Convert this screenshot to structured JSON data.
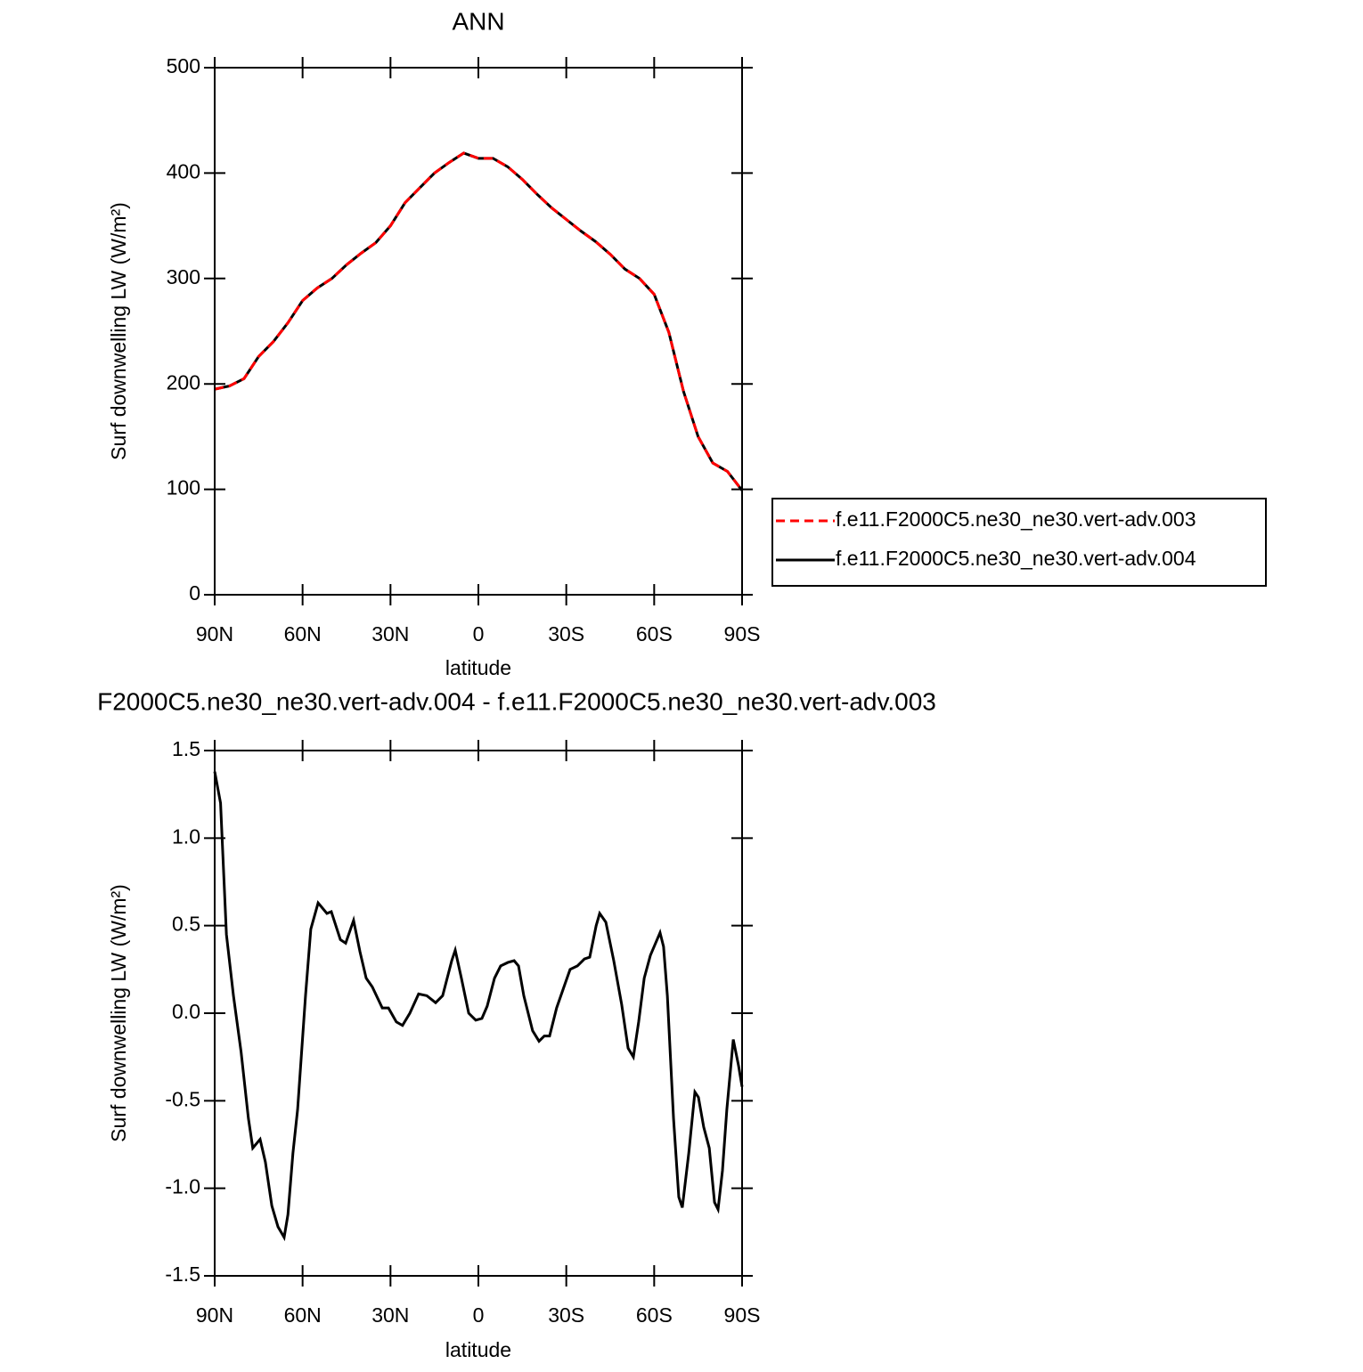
{
  "chart_data": [
    {
      "type": "line",
      "title": "ANN",
      "xlabel": "latitude",
      "ylabel": "Surf downwelling LW (W/m²)",
      "x": [
        90,
        85,
        80,
        75,
        70,
        65,
        60,
        55,
        50,
        45,
        40,
        35,
        30,
        25,
        20,
        15,
        10,
        5,
        0,
        -5,
        -10,
        -15,
        -20,
        -25,
        -30,
        -35,
        -40,
        -45,
        -50,
        -55,
        -60,
        -65,
        -70,
        -75,
        -80,
        -85,
        -90
      ],
      "series": [
        {
          "name": "f.e11.F2000C5.ne30_ne30.vert-adv.003",
          "color": "#ff0000",
          "linestyle": "dashed",
          "values": [
            195,
            198,
            205,
            226,
            240,
            258,
            279,
            291,
            300,
            313,
            324,
            334,
            350,
            372,
            386,
            400,
            410,
            419,
            414,
            414,
            406,
            394,
            380,
            367,
            356,
            345,
            335,
            323,
            309,
            300,
            285,
            249,
            193,
            150,
            125,
            117,
            99
          ]
        },
        {
          "name": "f.e11.F2000C5.ne30_ne30.vert-adv.004",
          "color": "#000000",
          "linestyle": "solid",
          "values": [
            195,
            198,
            205,
            226,
            240,
            258,
            279,
            291,
            300,
            313,
            324,
            334,
            350,
            372,
            386,
            400,
            410,
            419,
            414,
            414,
            406,
            394,
            380,
            367,
            356,
            345,
            335,
            323,
            309,
            300,
            285,
            249,
            193,
            150,
            125,
            117,
            99
          ]
        }
      ],
      "xlim": [
        90,
        -90
      ],
      "xticks": [
        {
          "value": 90,
          "label": "90N"
        },
        {
          "value": 60,
          "label": "60N"
        },
        {
          "value": 30,
          "label": "30N"
        },
        0,
        {
          "value": -30,
          "label": "30S"
        },
        {
          "value": -60,
          "label": "60S"
        },
        {
          "value": -90,
          "label": "90S"
        }
      ],
      "ylim": [
        0,
        500
      ],
      "yticks": [
        0,
        100,
        200,
        300,
        400,
        500
      ],
      "legend": "right"
    },
    {
      "type": "line",
      "title": "F2000C5.ne30_ne30.vert-adv.004 - f.e11.F2000C5.ne30_ne30.vert-adv.003",
      "xlabel": "latitude",
      "ylabel": "Surf downwelling LW (W/m²)",
      "x": [
        90,
        88,
        86.8,
        86,
        83.6,
        81,
        78.5,
        77,
        74.5,
        72.7,
        70.5,
        68.4,
        66.3,
        65,
        63.3,
        61.7,
        59,
        57.2,
        54.7,
        51.7,
        50.2,
        47.1,
        45.3,
        42.6,
        40.4,
        38.3,
        36.2,
        32.8,
        30.7,
        28,
        25.9,
        23.4,
        20.4,
        17.6,
        14.6,
        12.2,
        9.1,
        7.9,
        5.8,
        3.3,
        0.9,
        -1.2,
        -3,
        -5.5,
        -7.6,
        -10.1,
        -12.2,
        -13.7,
        -15.5,
        -18.5,
        -20.7,
        -22.5,
        -24.3,
        -26.7,
        -29.2,
        -31.3,
        -33.8,
        -36.2,
        -38,
        -40.2,
        -41.4,
        -43.5,
        -46.2,
        -48.9,
        -51.1,
        -52.9,
        -54.7,
        -56.6,
        -58.7,
        -62,
        -63.2,
        -64.5,
        -66.6,
        -68.4,
        -69.6,
        -71.8,
        -73.9,
        -75.1,
        -76.9,
        -78.8,
        -80.6,
        -81.8,
        -83.3,
        -84.8,
        -87,
        -88.8,
        -90
      ],
      "values": [
        1.38,
        1.2,
        0.75,
        0.45,
        0.1,
        -0.22,
        -0.6,
        -0.77,
        -0.72,
        -0.85,
        -1.1,
        -1.22,
        -1.28,
        -1.15,
        -0.8,
        -0.55,
        0.1,
        0.48,
        0.63,
        0.57,
        0.58,
        0.42,
        0.4,
        0.53,
        0.35,
        0.2,
        0.15,
        0.03,
        0.03,
        -0.05,
        -0.07,
        0,
        0.11,
        0.1,
        0.06,
        0.1,
        0.3,
        0.36,
        0.2,
        0,
        -0.04,
        -0.03,
        0.04,
        0.2,
        0.27,
        0.29,
        0.3,
        0.27,
        0.1,
        -0.1,
        -0.16,
        -0.13,
        -0.13,
        0.03,
        0.15,
        0.25,
        0.27,
        0.31,
        0.32,
        0.5,
        0.57,
        0.52,
        0.3,
        0.05,
        -0.2,
        -0.25,
        -0.05,
        0.2,
        0.33,
        0.46,
        0.38,
        0.1,
        -0.6,
        -1.05,
        -1.11,
        -0.8,
        -0.45,
        -0.48,
        -0.65,
        -0.77,
        -1.08,
        -1.12,
        -0.9,
        -0.55,
        -0.15,
        -0.3,
        -0.42
      ],
      "color": "#000000",
      "xlim": [
        90,
        -90
      ],
      "xticks": [
        {
          "value": 90,
          "label": "90N"
        },
        {
          "value": 60,
          "label": "60N"
        },
        {
          "value": 30,
          "label": "30N"
        },
        0,
        {
          "value": -30,
          "label": "30S"
        },
        {
          "value": -60,
          "label": "60S"
        },
        {
          "value": -90,
          "label": "90S"
        }
      ],
      "ylim": [
        -1.5,
        1.5
      ],
      "yticks": [
        -1.5,
        {
          "value": -1,
          "label": "-1.0"
        },
        -0.5,
        {
          "value": 0,
          "label": "0.0"
        },
        0.5,
        {
          "value": 1,
          "label": "1.0"
        },
        1.5
      ]
    }
  ]
}
